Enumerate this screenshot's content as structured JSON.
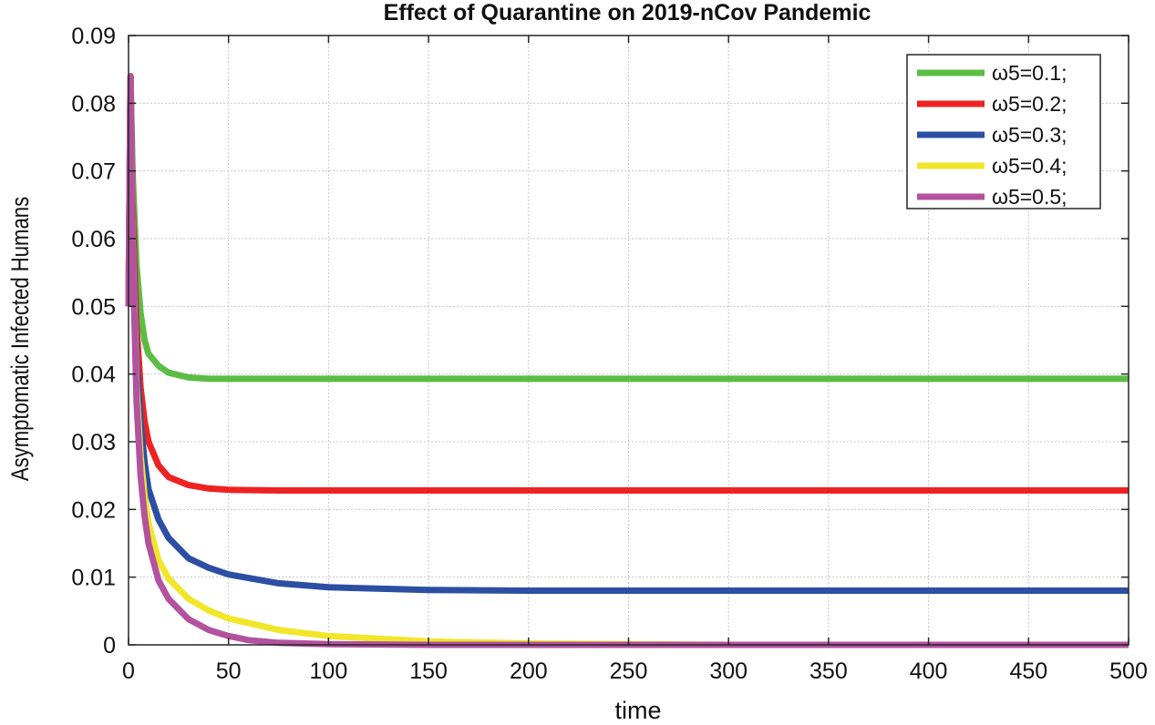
{
  "chart_data": {
    "type": "line",
    "title": "Effect of Quarantine on 2019-nCov Pandemic",
    "xlabel": "time",
    "ylabel": "Asymptomatic Infected Humans",
    "xlim": [
      0,
      500
    ],
    "ylim": [
      0,
      0.09
    ],
    "xticks": [
      0,
      50,
      100,
      150,
      200,
      250,
      300,
      350,
      400,
      450,
      500
    ],
    "xtick_labels": [
      "0",
      "50",
      "100",
      "150",
      "200",
      "250",
      "300",
      "350",
      "400",
      "450",
      "500"
    ],
    "yticks": [
      0,
      0.01,
      0.02,
      0.03,
      0.04,
      0.05,
      0.06,
      0.07,
      0.08,
      0.09
    ],
    "ytick_labels": [
      "0",
      "0.01",
      "0.02",
      "0.03",
      "0.04",
      "0.05",
      "0.06",
      "0.07",
      "0.08",
      "0.09"
    ],
    "grid": true,
    "legend_position": "top-right",
    "series": [
      {
        "name": "ω5=0.1;",
        "color": "#5bbd45",
        "x": [
          0,
          1,
          2,
          4,
          6,
          8,
          10,
          15,
          20,
          30,
          40,
          50,
          75,
          100,
          200,
          300,
          400,
          500
        ],
        "values": [
          0.05,
          0.084,
          0.07,
          0.056,
          0.049,
          0.045,
          0.043,
          0.0412,
          0.0402,
          0.0395,
          0.0393,
          0.0393,
          0.0393,
          0.0393,
          0.0393,
          0.0393,
          0.0393,
          0.0393
        ]
      },
      {
        "name": "ω5=0.2;",
        "color": "#ee2222",
        "x": [
          0,
          1,
          2,
          4,
          6,
          8,
          10,
          15,
          20,
          30,
          40,
          50,
          75,
          100,
          200,
          300,
          400,
          500
        ],
        "values": [
          0.05,
          0.084,
          0.065,
          0.047,
          0.038,
          0.033,
          0.03,
          0.0265,
          0.0248,
          0.0236,
          0.0231,
          0.0229,
          0.0228,
          0.0228,
          0.0228,
          0.0228,
          0.0228,
          0.0228
        ]
      },
      {
        "name": "ω5=0.3;",
        "color": "#2c4fa3",
        "x": [
          0,
          1,
          2,
          4,
          6,
          8,
          10,
          15,
          20,
          30,
          40,
          50,
          75,
          100,
          150,
          200,
          300,
          400,
          500
        ],
        "values": [
          0.05,
          0.084,
          0.062,
          0.042,
          0.033,
          0.027,
          0.023,
          0.0185,
          0.0158,
          0.0128,
          0.0114,
          0.0104,
          0.0091,
          0.0085,
          0.0081,
          0.008,
          0.008,
          0.008,
          0.008
        ]
      },
      {
        "name": "ω5=0.4;",
        "color": "#f2e62a",
        "x": [
          0,
          1,
          2,
          4,
          6,
          8,
          10,
          15,
          20,
          30,
          40,
          50,
          75,
          100,
          150,
          200,
          250,
          300,
          400,
          500
        ],
        "values": [
          0.05,
          0.084,
          0.06,
          0.038,
          0.028,
          0.022,
          0.018,
          0.0125,
          0.0098,
          0.0068,
          0.0051,
          0.0039,
          0.0022,
          0.0013,
          0.0005,
          0.0002,
          0.0001,
          0,
          0,
          0
        ]
      },
      {
        "name": "ω5=0.5;",
        "color": "#b3529e",
        "x": [
          0,
          1,
          2,
          4,
          6,
          8,
          10,
          15,
          20,
          30,
          40,
          50,
          60,
          75,
          100,
          150,
          200,
          300,
          400,
          500
        ],
        "values": [
          0.05,
          0.084,
          0.059,
          0.036,
          0.025,
          0.019,
          0.015,
          0.0095,
          0.0068,
          0.0038,
          0.0022,
          0.0013,
          0.0007,
          0.0003,
          0.0001,
          0,
          0,
          0,
          0,
          0
        ]
      }
    ]
  }
}
